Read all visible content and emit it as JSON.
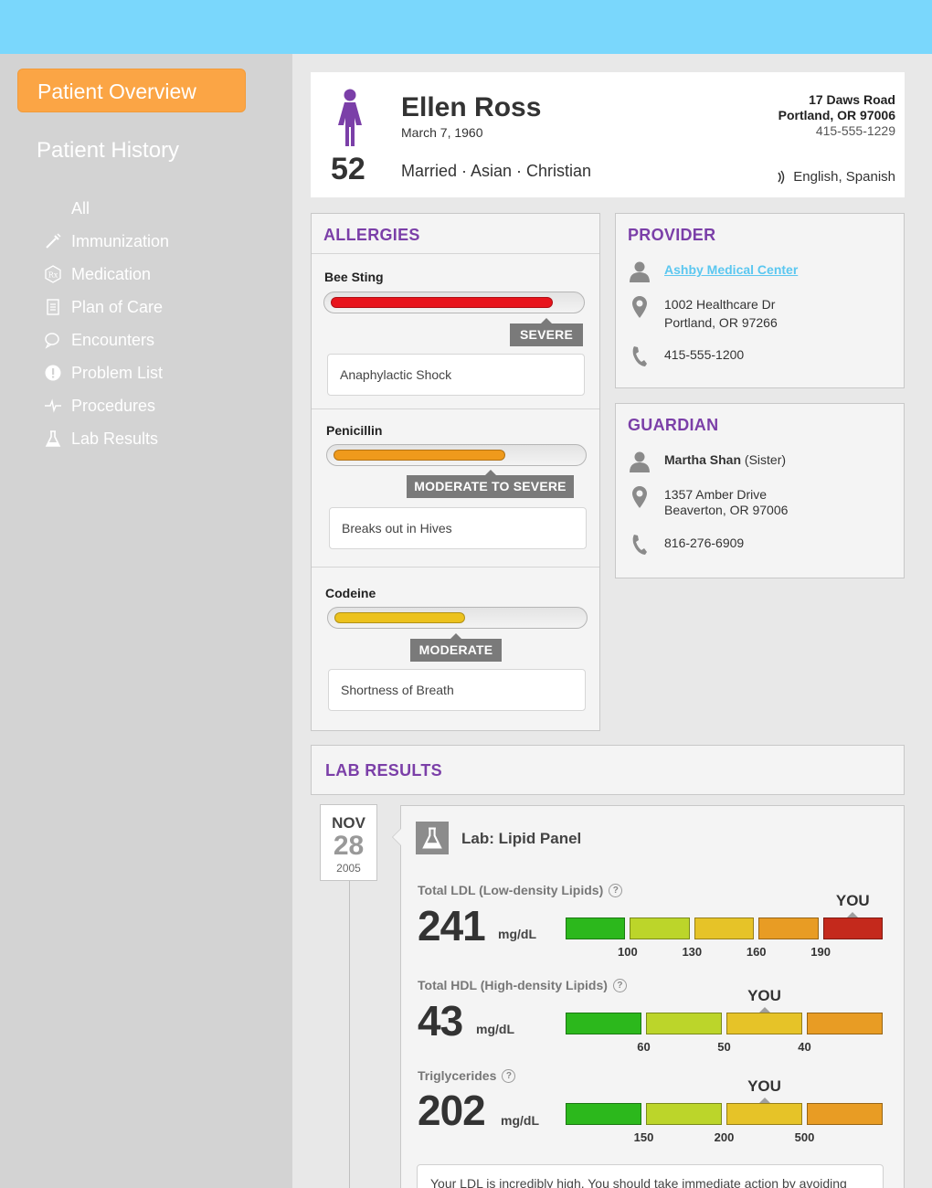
{
  "sidebar": {
    "overview_label": "Patient Overview",
    "history_label": "Patient History",
    "items": [
      {
        "label": "All",
        "icon": "none"
      },
      {
        "label": "Immunization",
        "icon": "syringe-icon"
      },
      {
        "label": "Medication",
        "icon": "rx-icon"
      },
      {
        "label": "Plan of Care",
        "icon": "document-icon"
      },
      {
        "label": "Encounters",
        "icon": "chat-bubbles-icon"
      },
      {
        "label": "Problem List",
        "icon": "alert-icon"
      },
      {
        "label": "Procedures",
        "icon": "pulse-icon"
      },
      {
        "label": "Lab Results",
        "icon": "flask-icon"
      }
    ]
  },
  "patient": {
    "name": "Ellen Ross",
    "dob": "March 7, 1960",
    "age": "52",
    "demographics": "Married · Asian · Christian",
    "address_line1": "17 Daws Road",
    "address_line2": "Portland, OR 97006",
    "phone": "415-555-1229",
    "languages": "English, Spanish",
    "gender_color": "#7b3fa8"
  },
  "allergies": {
    "title": "ALLERGIES",
    "items": [
      {
        "name": "Bee Sting",
        "severity": "SEVERE",
        "level": 0.9,
        "color": "#e8141c",
        "reaction": "Anaphylactic Shock"
      },
      {
        "name": "Penicillin",
        "severity": "MODERATE TO SEVERE",
        "level": 0.7,
        "color": "#ef9a1c",
        "reaction": "Breaks out in Hives"
      },
      {
        "name": "Codeine",
        "severity": "MODERATE",
        "level": 0.53,
        "color": "#ecc21e",
        "reaction": "Shortness of Breath"
      }
    ]
  },
  "provider": {
    "title": "PROVIDER",
    "name": "Ashby Medical Center",
    "address_line1": "1002 Healthcare Dr",
    "address_line2": "Portland, OR 97266",
    "phone": "415-555-1200"
  },
  "guardian": {
    "title": "GUARDIAN",
    "name": "Martha Shan",
    "relation": "(Sister)",
    "address_line1": "1357 Amber Drive",
    "address_line2": "Beaverton, OR 97006",
    "phone": "816-276-6909"
  },
  "lab_results": {
    "title": "LAB RESULTS",
    "date": {
      "month": "NOV",
      "day": "28",
      "year": "2005"
    },
    "lab_title": "Lab: Lipid Panel",
    "you_label": "YOU",
    "metrics": [
      {
        "name": "Total LDL (Low-density Lipids)",
        "value": "241",
        "unit": "mg/dL",
        "ticks": [
          "100",
          "130",
          "160",
          "190"
        ],
        "you_segment": 4
      },
      {
        "name": "Total HDL (High-density Lipids)",
        "value": "43",
        "unit": "mg/dL",
        "ticks": [
          "60",
          "50",
          "40"
        ],
        "you_segment": 2
      },
      {
        "name": "Triglycerides",
        "value": "202",
        "unit": "mg/dL",
        "ticks": [
          "150",
          "200",
          "500"
        ],
        "you_segment": 2
      }
    ],
    "note": "Your LDL is incredibly high. You should take immediate action by avoiding"
  },
  "colors": {
    "topbar": "#7ad7fc",
    "accent_orange": "#fba545",
    "title_purple": "#7b3fa8",
    "link_blue": "#5bc7f0",
    "range_green": "#2cb81c",
    "range_lime": "#bcd52a",
    "range_yellow": "#e6c328",
    "range_orange": "#e89c24",
    "range_red": "#c4291c"
  }
}
